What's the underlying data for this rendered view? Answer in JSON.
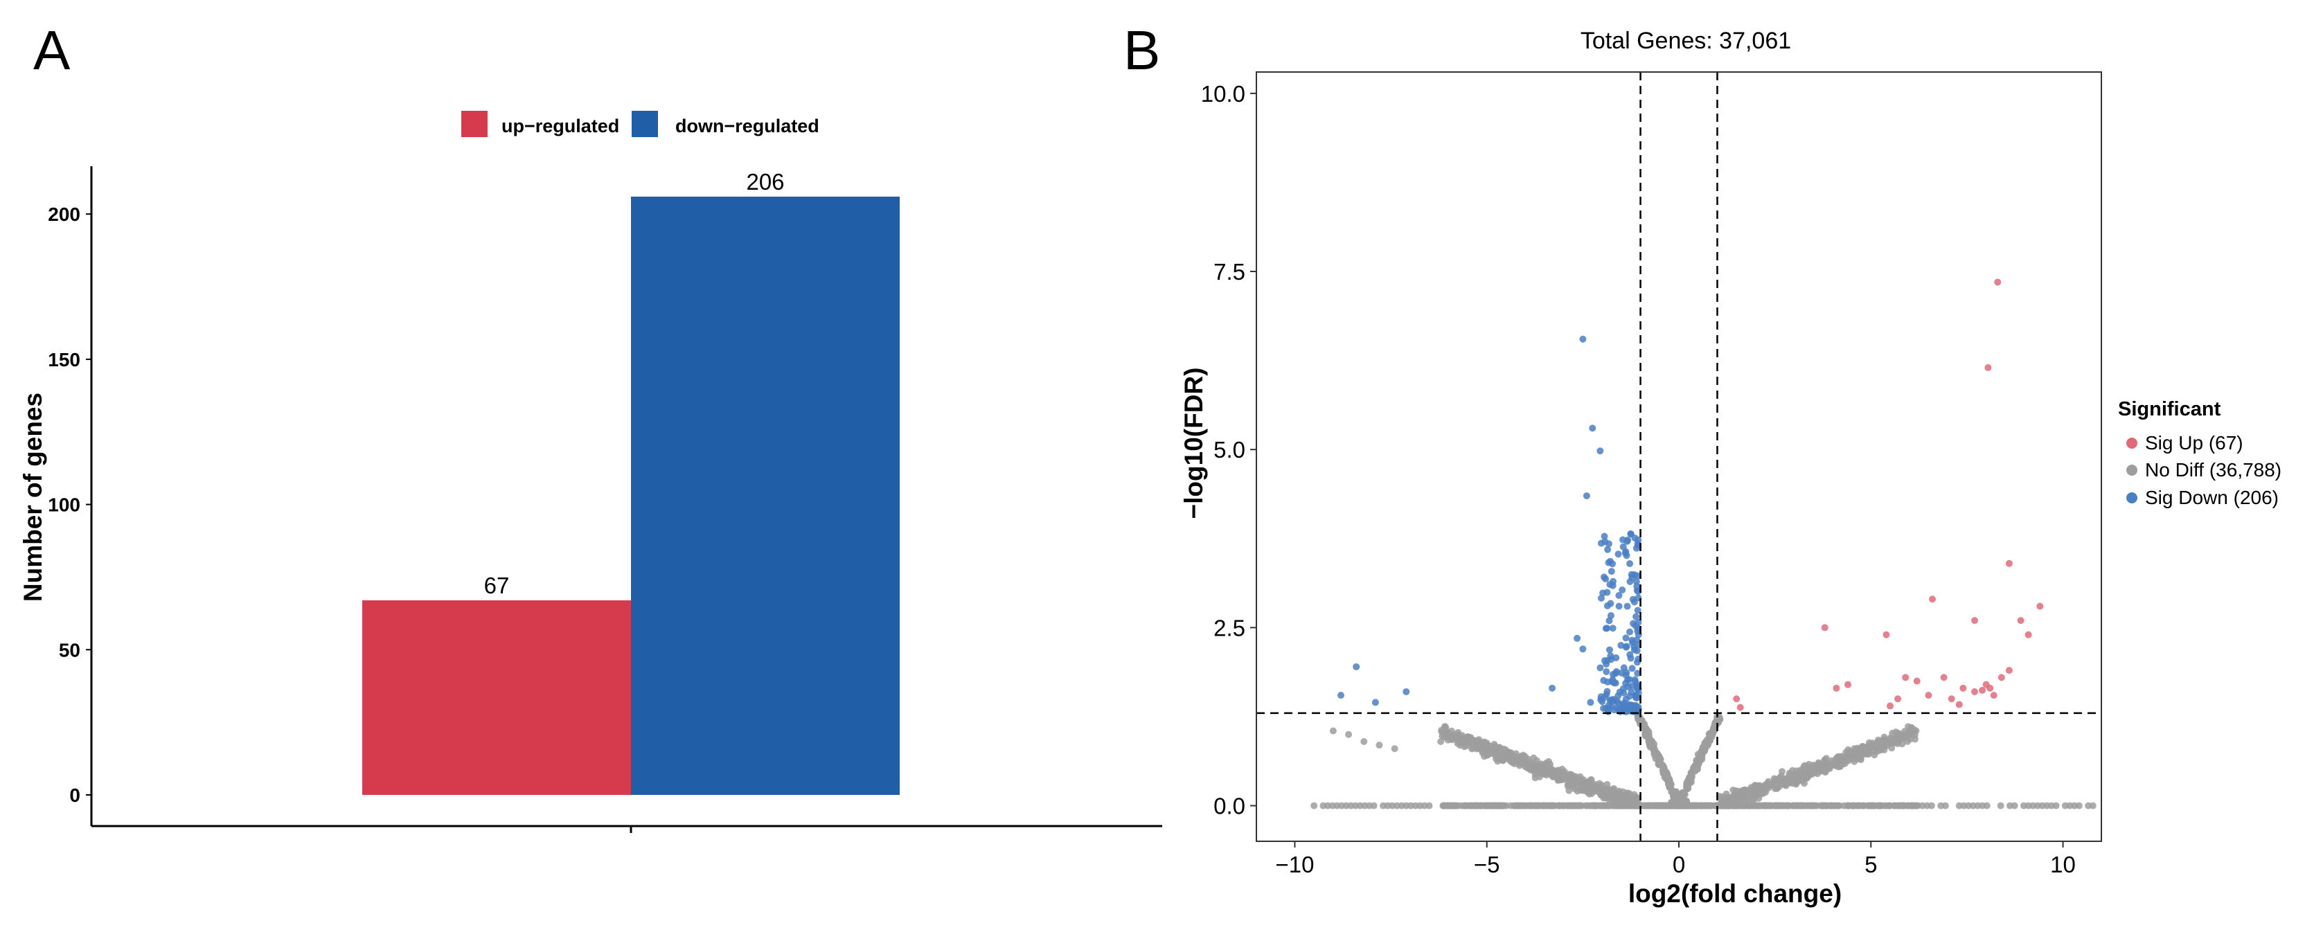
{
  "chart_data": [
    {
      "type": "bar",
      "panel_label": "A",
      "title": "",
      "xlabel": "",
      "ylabel": "Number of genes",
      "ylim": [
        0,
        206
      ],
      "yticks": [
        "0",
        "50",
        "100",
        "150",
        "200"
      ],
      "legend_position": "top",
      "series": [
        {
          "name": "up−regulated",
          "value": 67,
          "label": "67",
          "color": "#d63b4d"
        },
        {
          "name": "down−regulated",
          "value": 206,
          "label": "206",
          "color": "#205fa8"
        }
      ]
    },
    {
      "type": "scatter",
      "panel_label": "B",
      "title": "Total Genes: 37,061",
      "xlabel": "log2(fold change)",
      "ylabel": "−log10(FDR)",
      "xlim": [
        -11,
        11
      ],
      "ylim": [
        -0.5,
        10.3
      ],
      "xticks": [
        "−10",
        "−5",
        "0",
        "5",
        "10"
      ],
      "yticks": [
        "0.0",
        "2.5",
        "5.0",
        "7.5",
        "10.0"
      ],
      "thresholds": {
        "log2fc": [
          -1,
          1
        ],
        "neg_log10_fdr": 1.3
      },
      "legend_title": "Significant",
      "legend_position": "right",
      "categories": [
        {
          "name": "Sig Up (67)",
          "count": 67,
          "color": "#e06a7a"
        },
        {
          "name": "No Diff (36,788)",
          "count": 36788,
          "color": "#9e9e9e"
        },
        {
          "name": "Sig Down (206)",
          "count": 206,
          "color": "#4a7fc4"
        }
      ],
      "sig_up_points": [
        [
          8.3,
          7.35
        ],
        [
          8.05,
          6.15
        ],
        [
          8.6,
          3.4
        ],
        [
          9.4,
          2.8
        ],
        [
          8.9,
          2.6
        ],
        [
          9.1,
          2.4
        ],
        [
          6.6,
          2.9
        ],
        [
          7.7,
          2.6
        ],
        [
          5.4,
          2.4
        ],
        [
          3.8,
          2.5
        ],
        [
          4.4,
          1.7
        ],
        [
          4.1,
          1.65
        ],
        [
          5.9,
          1.8
        ],
        [
          6.2,
          1.75
        ],
        [
          6.5,
          1.55
        ],
        [
          6.9,
          1.8
        ],
        [
          7.1,
          1.5
        ],
        [
          7.4,
          1.65
        ],
        [
          7.7,
          1.6
        ],
        [
          8.0,
          1.7
        ],
        [
          8.2,
          1.55
        ],
        [
          8.4,
          1.8
        ],
        [
          8.6,
          1.9
        ],
        [
          5.7,
          1.5
        ],
        [
          5.5,
          1.4
        ],
        [
          7.3,
          1.42
        ],
        [
          7.9,
          1.62
        ],
        [
          8.1,
          1.65
        ],
        [
          1.5,
          1.5
        ],
        [
          1.6,
          1.38
        ]
      ],
      "sig_down_points": [
        [
          -2.5,
          6.55
        ],
        [
          -2.25,
          5.3
        ],
        [
          -2.05,
          4.98
        ],
        [
          -2.4,
          4.35
        ],
        [
          -8.4,
          1.95
        ],
        [
          -7.9,
          1.45
        ],
        [
          -7.1,
          1.6
        ],
        [
          -8.8,
          1.55
        ],
        [
          -3.3,
          1.65
        ],
        [
          -2.3,
          1.45
        ],
        [
          -2.65,
          2.35
        ],
        [
          -2.5,
          2.2
        ]
      ]
    }
  ]
}
